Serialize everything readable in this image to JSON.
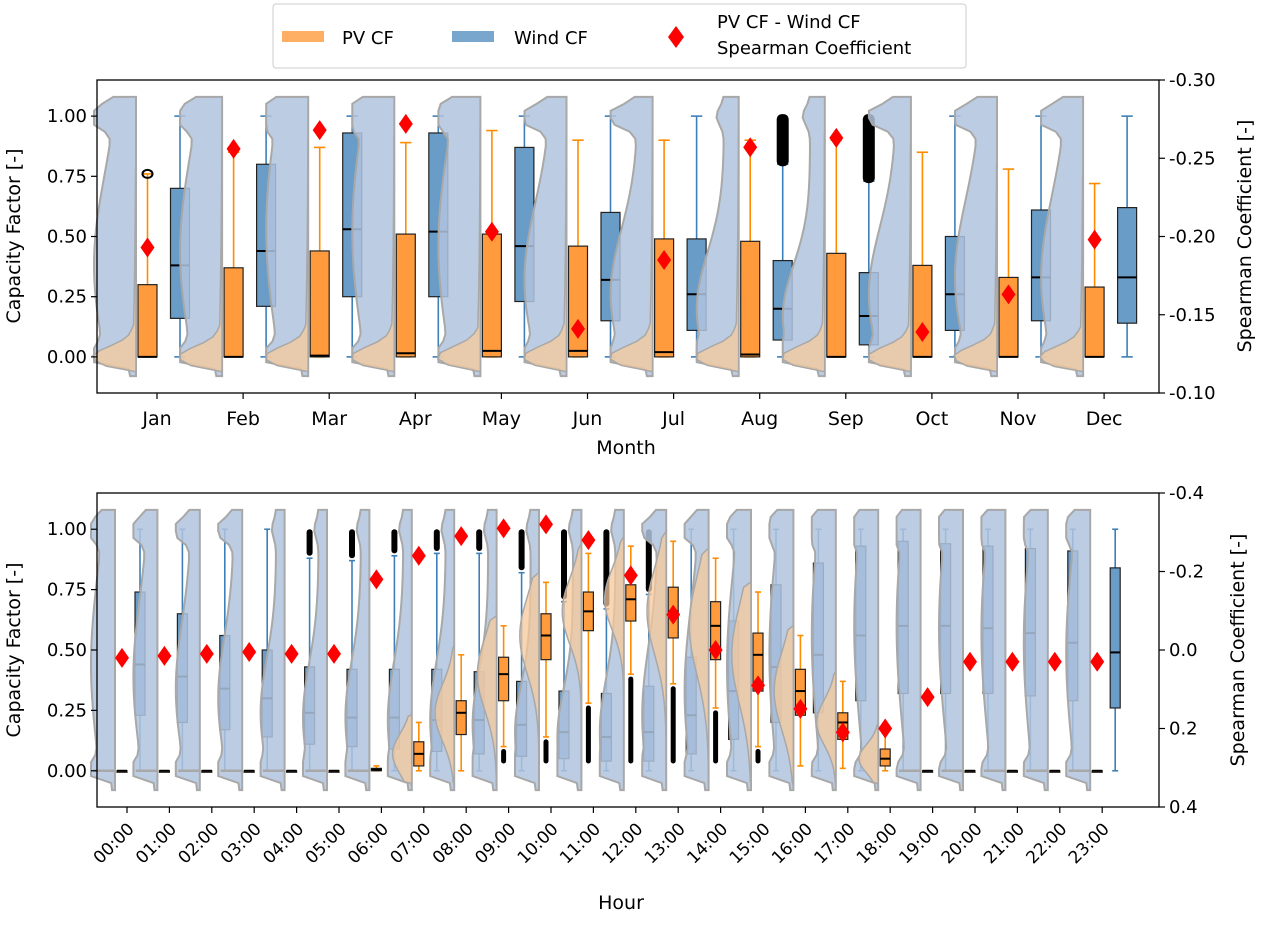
{
  "legend": {
    "placement": "top-center",
    "items": [
      {
        "label": "PV CF",
        "color": "#ff9b3d",
        "kind": "band"
      },
      {
        "label": "Wind CF",
        "color": "#6a9cc8",
        "kind": "band"
      },
      {
        "label": "PV CF - Wind CF",
        "label2": "Spearman Coefficient",
        "color": "#ff0000",
        "kind": "diamond"
      }
    ]
  },
  "colors": {
    "pv_fill": "#ff9b3d",
    "pv_whisker": "#ff8c00",
    "wind_fill": "#6a9cc8",
    "wind_whisker": "#3d7fb8",
    "violin_blue": "#b0c4de",
    "violin_orange": "#f7c89a",
    "violin_edge": "#a8a8a8",
    "marker": "#ff0000"
  },
  "chart_data": [
    {
      "type": "box+violin",
      "xlabel": "Month",
      "ylabel": "Capacity Factor [-]",
      "y2label": "Spearman Coefficient [-]",
      "ylim": [
        -0.15,
        1.15
      ],
      "y2lim": [
        -0.1,
        -0.3
      ],
      "y2_inverted": true,
      "yticks": [
        "0.00",
        "0.25",
        "0.50",
        "0.75",
        "1.00"
      ],
      "y2ticks": [
        "-0.30",
        "-0.25",
        "-0.20",
        "-0.15",
        "-0.10"
      ],
      "y2tick_values": [
        -0.3,
        -0.25,
        -0.2,
        -0.15,
        -0.1
      ],
      "categories": [
        "Jan",
        "Feb",
        "Mar",
        "Apr",
        "May",
        "Jun",
        "Jul",
        "Aug",
        "Sep",
        "Oct",
        "Nov",
        "Dec"
      ],
      "pv": {
        "q1": [
          0,
          0,
          0,
          0,
          0,
          0,
          0,
          0,
          0,
          0,
          0,
          0
        ],
        "median": [
          0,
          0,
          0.005,
          0.015,
          0.025,
          0.025,
          0.02,
          0.01,
          0,
          0,
          0,
          0
        ],
        "q3": [
          0.3,
          0.37,
          0.44,
          0.51,
          0.51,
          0.46,
          0.49,
          0.48,
          0.43,
          0.38,
          0.33,
          0.29
        ],
        "whisker_high": [
          0.76,
          0.85,
          0.87,
          0.89,
          0.94,
          0.9,
          0.9,
          0.9,
          0.9,
          0.85,
          0.78,
          0.72
        ],
        "outliers": [
          "0.76",
          "",
          "",
          "",
          "",
          "",
          "",
          "",
          "",
          "",
          "",
          ""
        ]
      },
      "wind": {
        "q1": [
          0.16,
          0.21,
          0.25,
          0.25,
          0.23,
          0.15,
          0.11,
          0.07,
          0.05,
          0.11,
          0.15,
          0.14
        ],
        "median": [
          0.38,
          0.44,
          0.53,
          0.52,
          0.46,
          0.32,
          0.26,
          0.2,
          0.17,
          0.26,
          0.33,
          0.33
        ],
        "q3": [
          0.7,
          0.8,
          0.93,
          0.93,
          0.87,
          0.6,
          0.49,
          0.4,
          0.35,
          0.5,
          0.61,
          0.62
        ],
        "whisker_low": [
          0,
          0,
          0,
          0,
          0,
          0,
          0,
          0,
          0,
          0,
          0,
          0
        ],
        "whisker_high": [
          1,
          1,
          1,
          1,
          1,
          1,
          1,
          0.8,
          0.73,
          1,
          1,
          1
        ],
        "outlier_range": [
          [],
          [],
          [],
          [],
          [],
          [],
          [],
          [
            0.8,
            1.0
          ],
          [
            0.73,
            1.0
          ],
          [],
          [],
          []
        ]
      },
      "spearman": [
        -0.193,
        -0.256,
        -0.268,
        -0.272,
        -0.203,
        -0.141,
        -0.185,
        -0.257,
        -0.263,
        -0.139,
        -0.163,
        -0.198
      ]
    },
    {
      "type": "box+violin",
      "xlabel": "Hour",
      "ylabel": "Capacity Factor [-]",
      "y2label": "Spearman Coefficient [-]",
      "ylim": [
        -0.15,
        1.15
      ],
      "y2lim": [
        0.4,
        -0.4
      ],
      "y2_inverted": true,
      "yticks": [
        "0.00",
        "0.25",
        "0.50",
        "0.75",
        "1.00"
      ],
      "y2ticks": [
        "-0.4",
        "-0.2",
        "0.0",
        "0.2",
        "0.4"
      ],
      "y2tick_values": [
        -0.4,
        -0.2,
        0.0,
        0.2,
        0.4
      ],
      "categories": [
        "00:00",
        "01:00",
        "02:00",
        "03:00",
        "04:00",
        "05:00",
        "06:00",
        "07:00",
        "08:00",
        "09:00",
        "10:00",
        "11:00",
        "12:00",
        "13:00",
        "14:00",
        "15:00",
        "16:00",
        "17:00",
        "18:00",
        "19:00",
        "20:00",
        "21:00",
        "22:00",
        "23:00"
      ],
      "pv": {
        "q1": [
          0,
          0,
          0,
          0,
          0,
          0,
          0,
          0.02,
          0.15,
          0.29,
          0.46,
          0.58,
          0.62,
          0.55,
          0.46,
          0.33,
          0.23,
          0.13,
          0.02,
          0,
          0,
          0,
          0,
          0
        ],
        "median": [
          0,
          0,
          0,
          0,
          0,
          0,
          0.005,
          0.07,
          0.24,
          0.4,
          0.56,
          0.66,
          0.71,
          0.66,
          0.6,
          0.48,
          0.33,
          0.2,
          0.05,
          0,
          0,
          0,
          0,
          0
        ],
        "q3": [
          0,
          0,
          0,
          0,
          0,
          0,
          0.01,
          0.12,
          0.29,
          0.47,
          0.65,
          0.74,
          0.77,
          0.76,
          0.7,
          0.57,
          0.42,
          0.24,
          0.09,
          0,
          0,
          0,
          0,
          0
        ],
        "whisker_low": [
          0,
          0,
          0,
          0,
          0,
          0,
          0,
          0,
          0,
          0.1,
          0.14,
          0.28,
          0.4,
          0.36,
          0.26,
          0.1,
          0.02,
          0.01,
          0,
          0,
          0,
          0,
          0,
          0
        ],
        "whisker_high": [
          0,
          0,
          0,
          0,
          0,
          0,
          0.02,
          0.2,
          0.48,
          0.6,
          0.78,
          0.9,
          0.93,
          0.95,
          0.88,
          0.74,
          0.56,
          0.37,
          0.16,
          0,
          0,
          0,
          0,
          0
        ]
      },
      "wind": {
        "q1": [
          0.23,
          0.2,
          0.17,
          0.14,
          0.11,
          0.1,
          0.09,
          0.08,
          0.07,
          0.06,
          0.05,
          0.04,
          0.04,
          0.07,
          0.13,
          0.2,
          0.24,
          0.29,
          0.32,
          0.32,
          0.32,
          0.31,
          0.29,
          0.26
        ],
        "median": [
          0.44,
          0.39,
          0.34,
          0.3,
          0.24,
          0.22,
          0.22,
          0.21,
          0.21,
          0.19,
          0.16,
          0.14,
          0.16,
          0.23,
          0.33,
          0.43,
          0.48,
          0.56,
          0.6,
          0.6,
          0.59,
          0.57,
          0.53,
          0.49
        ],
        "q3": [
          0.74,
          0.65,
          0.56,
          0.5,
          0.43,
          0.42,
          0.42,
          0.42,
          0.41,
          0.37,
          0.33,
          0.32,
          0.35,
          0.47,
          0.62,
          0.77,
          0.86,
          0.93,
          0.95,
          0.94,
          0.93,
          0.92,
          0.91,
          0.84
        ],
        "whisker_low": [
          0,
          0,
          0,
          0,
          0,
          0,
          0,
          0,
          0,
          0,
          0,
          0,
          0,
          0,
          0,
          0,
          0,
          0,
          0,
          0,
          0,
          0,
          0,
          0
        ],
        "whisker_high": [
          1,
          1,
          1,
          1,
          0.88,
          0.87,
          0.89,
          0.9,
          0.9,
          0.82,
          0.7,
          0.67,
          0.73,
          1,
          1,
          1,
          1,
          1,
          1,
          1,
          1,
          1,
          1,
          1
        ]
      },
      "spearman": [
        0.02,
        0.015,
        0.01,
        0.005,
        0.01,
        0.01,
        -0.18,
        -0.24,
        -0.29,
        -0.31,
        -0.32,
        -0.28,
        -0.19,
        -0.09,
        0.0,
        0.09,
        0.15,
        0.21,
        0.2,
        0.12,
        0.03,
        0.03,
        0.03,
        0.03
      ]
    }
  ]
}
